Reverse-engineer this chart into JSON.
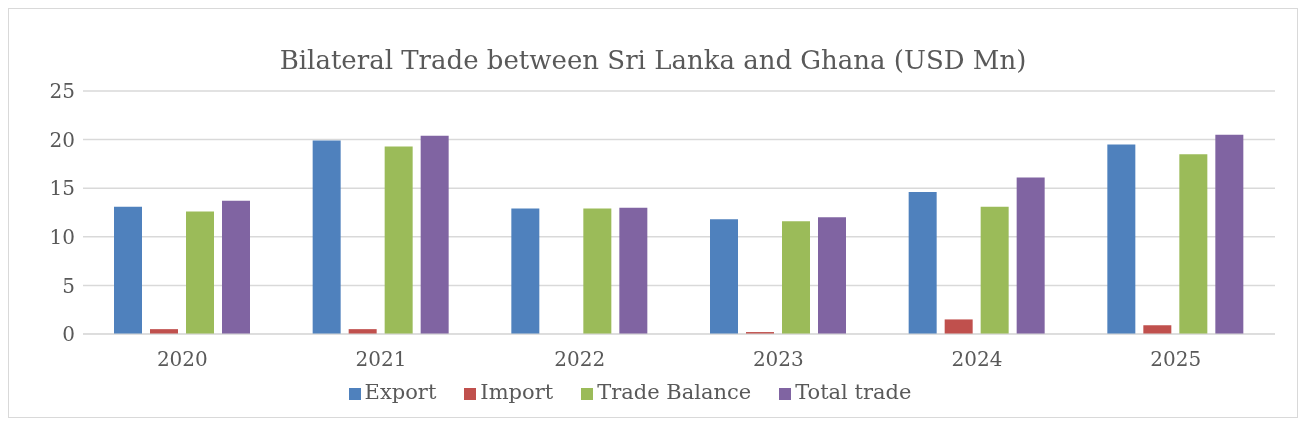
{
  "chart_data": {
    "type": "bar",
    "title": "Bilateral Trade between Sri Lanka and Ghana (USD Mn)",
    "categories": [
      "2020",
      "2021",
      "2022",
      "2023",
      "2024",
      "2025"
    ],
    "series": [
      {
        "name": "Export",
        "color": "#4f81bd",
        "values": [
          13.1,
          19.9,
          12.9,
          11.8,
          14.6,
          19.5
        ]
      },
      {
        "name": "Import",
        "color": "#c0504d",
        "values": [
          0.5,
          0.5,
          0,
          0.2,
          1.5,
          0.9
        ]
      },
      {
        "name": "Trade Balance",
        "color": "#9bbb59",
        "values": [
          12.6,
          19.3,
          12.9,
          11.6,
          13.1,
          18.5
        ]
      },
      {
        "name": "Total trade",
        "color": "#8064a2",
        "values": [
          13.7,
          20.4,
          13.0,
          12.0,
          16.1,
          20.5
        ]
      }
    ],
    "ylim": [
      0,
      25
    ],
    "yticks": [
      0,
      5,
      10,
      15,
      20,
      25
    ],
    "grid": "y",
    "legend": "bottom"
  }
}
